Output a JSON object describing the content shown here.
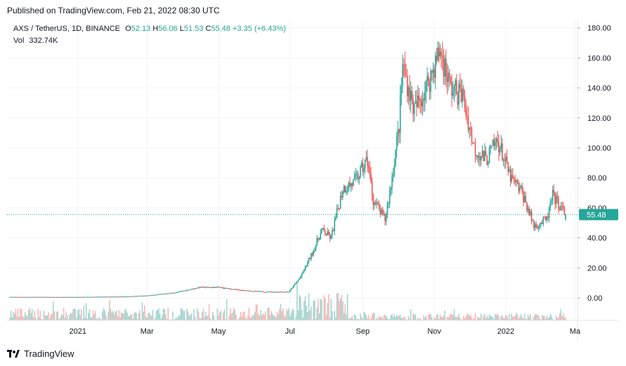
{
  "header": {
    "published": "Published on TradingView.com, Feb 21, 2022 08:30 UTC"
  },
  "legend": {
    "symbol": "AXS / TetherUS, 1D, BINANCE",
    "o_label": "O",
    "o": "52.13",
    "h_label": "H",
    "h": "56.06",
    "l_label": "L",
    "l": "51.53",
    "c_label": "C",
    "c": "55.48",
    "change": "+3.35 (+6.43%)",
    "vol_label": "Vol",
    "vol": "332.74K"
  },
  "footer": {
    "brand": "TradingView"
  },
  "colors": {
    "up": "#26a69a",
    "down": "#ef5350",
    "grid": "#f0f3fa",
    "text": "#131722",
    "last_price": "#26a69a"
  },
  "chart_data": {
    "type": "candlestick",
    "symbol": "AXS / TetherUS",
    "interval": "1D",
    "exchange": "BINANCE",
    "price_axis": {
      "ticks": [
        "180.00",
        "160.00",
        "140.00",
        "120.00",
        "100.00",
        "80.00",
        "60.00",
        "40.00",
        "20.00",
        "0.00"
      ],
      "ylim": [
        -15,
        185
      ]
    },
    "time_axis": {
      "ticks": [
        "2021",
        "Mar",
        "May",
        "Jul",
        "Sep",
        "Nov",
        "2022",
        "Ma"
      ]
    },
    "last_price": "55.48",
    "grid": true,
    "closes_approx": [
      {
        "date": "2020-11-04",
        "close": 0.6
      },
      {
        "date": "2021-01-01",
        "close": 0.55
      },
      {
        "date": "2021-02-10",
        "close": 0.9
      },
      {
        "date": "2021-03-01",
        "close": 1.5
      },
      {
        "date": "2021-03-25",
        "close": 3.5
      },
      {
        "date": "2021-04-15",
        "close": 7
      },
      {
        "date": "2021-05-01",
        "close": 7
      },
      {
        "date": "2021-05-20",
        "close": 5
      },
      {
        "date": "2021-06-10",
        "close": 4
      },
      {
        "date": "2021-06-30",
        "close": 4
      },
      {
        "date": "2021-07-10",
        "close": 14
      },
      {
        "date": "2021-07-20",
        "close": 30
      },
      {
        "date": "2021-07-28",
        "close": 45
      },
      {
        "date": "2021-08-05",
        "close": 40
      },
      {
        "date": "2021-08-15",
        "close": 73
      },
      {
        "date": "2021-08-25",
        "close": 77
      },
      {
        "date": "2021-09-05",
        "close": 92
      },
      {
        "date": "2021-09-10",
        "close": 65
      },
      {
        "date": "2021-09-20",
        "close": 52
      },
      {
        "date": "2021-09-25",
        "close": 75
      },
      {
        "date": "2021-10-02",
        "close": 115
      },
      {
        "date": "2021-10-05",
        "close": 155
      },
      {
        "date": "2021-10-15",
        "close": 125
      },
      {
        "date": "2021-10-25",
        "close": 140
      },
      {
        "date": "2021-11-06",
        "close": 165
      },
      {
        "date": "2021-11-15",
        "close": 140
      },
      {
        "date": "2021-11-25",
        "close": 135
      },
      {
        "date": "2021-12-05",
        "close": 100
      },
      {
        "date": "2021-12-15",
        "close": 92
      },
      {
        "date": "2021-12-25",
        "close": 105
      },
      {
        "date": "2022-01-05",
        "close": 80
      },
      {
        "date": "2022-01-15",
        "close": 70
      },
      {
        "date": "2022-01-25",
        "close": 48
      },
      {
        "date": "2022-02-05",
        "close": 52
      },
      {
        "date": "2022-02-10",
        "close": 68
      },
      {
        "date": "2022-02-21",
        "close": 55.48
      }
    ]
  }
}
